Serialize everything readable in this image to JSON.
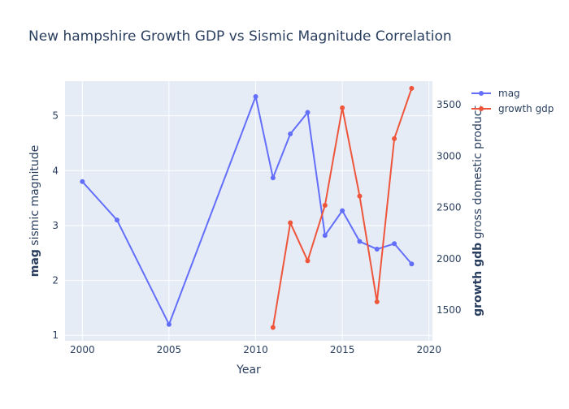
{
  "chart_data": {
    "type": "line",
    "title": "New hampshire Growth GDP vs Sismic Magnitude Correlation",
    "xlabel": "Year",
    "ylabel_left_bold": "mag",
    "ylabel_left_rest": " sismic magnitude",
    "ylabel_right_bold": "growth gdb",
    "ylabel_right_rest": " gross domestic product",
    "x_ticks": [
      2000,
      2005,
      2010,
      2015,
      2020
    ],
    "y_left_ticks": [
      1,
      2,
      3,
      4,
      5
    ],
    "y_right_ticks": [
      1500,
      2000,
      2500,
      3000,
      3500
    ],
    "xlim": [
      1999.0,
      2020.2
    ],
    "y_left_lim": [
      0.9,
      5.63
    ],
    "y_right_lim": [
      1200,
      3730
    ],
    "legend_position": "top-right",
    "grid": true,
    "series": [
      {
        "name": "mag",
        "axis": "left",
        "color": "#636efa",
        "x": [
          2000,
          2002,
          2005,
          2010,
          2011,
          2012,
          2013,
          2014,
          2015,
          2016,
          2017,
          2018,
          2019
        ],
        "y": [
          3.8,
          3.1,
          1.2,
          5.35,
          3.87,
          4.67,
          5.06,
          2.82,
          3.27,
          2.71,
          2.57,
          2.67,
          2.3
        ]
      },
      {
        "name": "growth gdp",
        "axis": "right",
        "color": "#ef553b",
        "x": [
          2011,
          2012,
          2013,
          2014,
          2015,
          2016,
          2017,
          2018,
          2019
        ],
        "y": [
          1330,
          2350,
          1980,
          2520,
          3470,
          2610,
          1580,
          3170,
          3660
        ]
      }
    ]
  }
}
